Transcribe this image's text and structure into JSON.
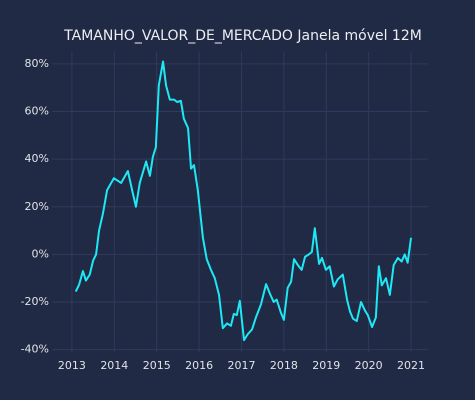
{
  "chart_data": {
    "type": "line",
    "title": "TAMANHO_VALOR_DE_MERCADO Janela móvel 12M",
    "color": "#1ee8f5",
    "grid": true,
    "x": [
      2013.09,
      2013.17,
      2013.26,
      2013.33,
      2013.42,
      2013.5,
      2013.57,
      2013.64,
      2013.73,
      2013.83,
      2013.99,
      2014.16,
      2014.32,
      2014.42,
      2014.51,
      2014.6,
      2014.75,
      2014.84,
      2014.91,
      2014.98,
      2015.05,
      2015.15,
      2015.22,
      2015.31,
      2015.41,
      2015.48,
      2015.57,
      2015.64,
      2015.74,
      2015.81,
      2015.88,
      2015.97,
      2016.09,
      2016.18,
      2016.28,
      2016.37,
      2016.47,
      2016.56,
      2016.66,
      2016.75,
      2016.82,
      2016.89,
      2016.96,
      2017.06,
      2017.15,
      2017.25,
      2017.34,
      2017.46,
      2017.58,
      2017.67,
      2017.76,
      2017.83,
      2017.93,
      2018.0,
      2018.09,
      2018.17,
      2018.24,
      2018.33,
      2018.42,
      2018.5,
      2018.59,
      2018.66,
      2018.73,
      2018.83,
      2018.9,
      2018.99,
      2019.08,
      2019.18,
      2019.27,
      2019.39,
      2019.49,
      2019.56,
      2019.63,
      2019.72,
      2019.82,
      2019.91,
      2019.98,
      2020.08,
      2020.17,
      2020.24,
      2020.31,
      2020.41,
      2020.5,
      2020.59,
      2020.69,
      2020.78,
      2020.85,
      2020.92,
      2021.0
    ],
    "values": [
      -15.6,
      -12.7,
      -7,
      -11,
      -8.5,
      -2.6,
      0,
      10,
      17,
      27,
      32,
      30,
      35,
      27,
      20,
      30,
      39,
      33,
      41,
      45,
      71,
      81,
      71,
      65,
      65,
      64,
      64.5,
      57,
      53,
      36,
      37.5,
      27,
      7,
      -2,
      -6.5,
      -10,
      -17,
      -31,
      -29,
      -30,
      -25,
      -25.5,
      -19.5,
      -36,
      -33.5,
      -31.5,
      -26.5,
      -21,
      -12.5,
      -16.5,
      -20,
      -19,
      -24.5,
      -27.5,
      -14,
      -11.5,
      -2,
      -4.5,
      -6.5,
      -1,
      0,
      1,
      11,
      -4,
      -1.5,
      -6.5,
      -5,
      -13.5,
      -10.5,
      -8.5,
      -19,
      -24,
      -27,
      -28,
      -20,
      -23.5,
      -25.5,
      -30.5,
      -26.5,
      -5,
      -13,
      -10,
      -17,
      -4.5,
      -1.5,
      -3,
      0,
      -3.5,
      7
    ],
    "xlim": [
      2012.53,
      2021.4
    ],
    "xticks": [
      2013,
      2014,
      2015,
      2016,
      2017,
      2018,
      2019,
      2020,
      2021
    ],
    "ylim": [
      -41,
      85
    ],
    "yticks": [
      {
        "value": -40,
        "label": "-40%"
      },
      {
        "value": -20,
        "label": "-20%"
      },
      {
        "value": 0,
        "label": "0%"
      },
      {
        "value": 20,
        "label": "20%"
      },
      {
        "value": 40,
        "label": "40%"
      },
      {
        "value": 60,
        "label": "60%"
      },
      {
        "value": 80,
        "label": "80%"
      }
    ]
  }
}
